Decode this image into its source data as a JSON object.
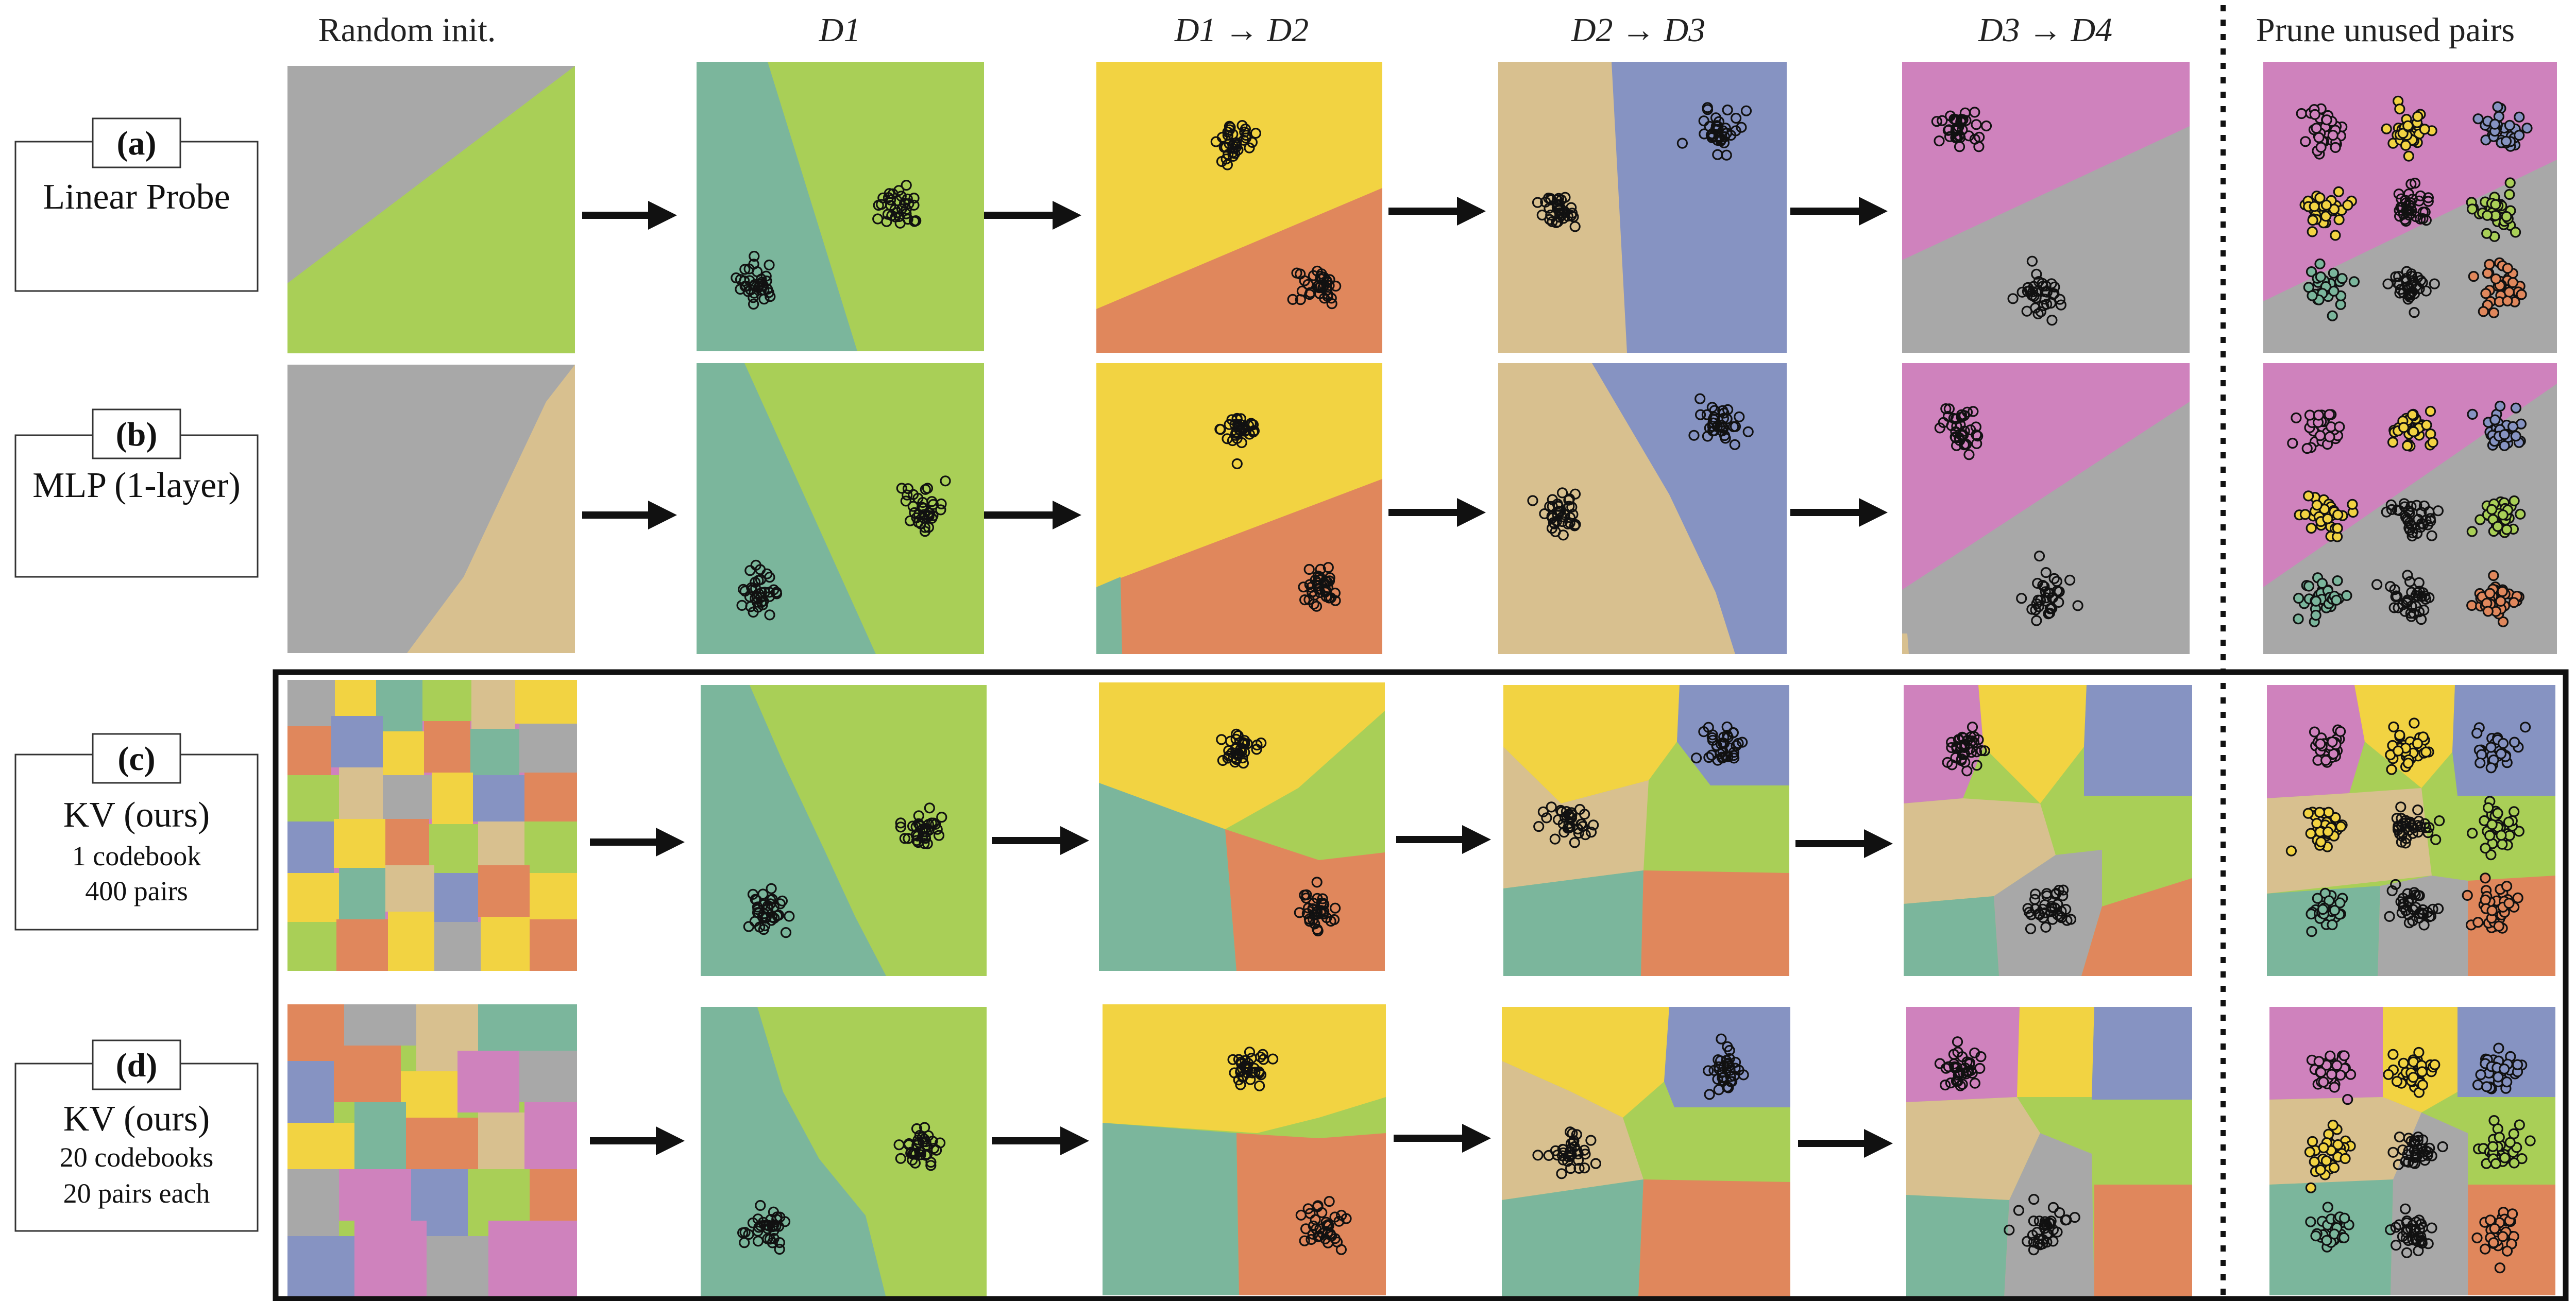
{
  "columns": [
    {
      "id": "random-init",
      "label": "Random init.",
      "italic": false
    },
    {
      "id": "d1",
      "label": "D1",
      "italic": true
    },
    {
      "id": "d1-d2",
      "label": "D1 → D2",
      "italic": true
    },
    {
      "id": "d2-d3",
      "label": "D2 → D3",
      "italic": true
    },
    {
      "id": "d3-d4",
      "label": "D3 → D4",
      "italic": true
    },
    {
      "id": "prune",
      "label": "Prune unused pairs",
      "italic": false
    }
  ],
  "rows": [
    {
      "id": "a",
      "tag": "(a)",
      "lines": [
        "Linear Probe"
      ]
    },
    {
      "id": "b",
      "tag": "(b)",
      "lines": [
        "MLP (1-layer)"
      ]
    },
    {
      "id": "c",
      "tag": "(c)",
      "lines": [
        "KV (ours)",
        "1 codebook",
        "400 pairs"
      ]
    },
    {
      "id": "d",
      "tag": "(d)",
      "lines": [
        "KV (ours)",
        "20 codebooks",
        "20 pairs each"
      ]
    }
  ],
  "colors": {
    "gray": "#a8a8a8",
    "lime": "#a9cf57",
    "teal": "#7bb69c",
    "yellow": "#f2d342",
    "orange": "#e0875c",
    "tan": "#d8c08f",
    "blue": "#8693c2",
    "pink": "#cf82bd"
  }
}
